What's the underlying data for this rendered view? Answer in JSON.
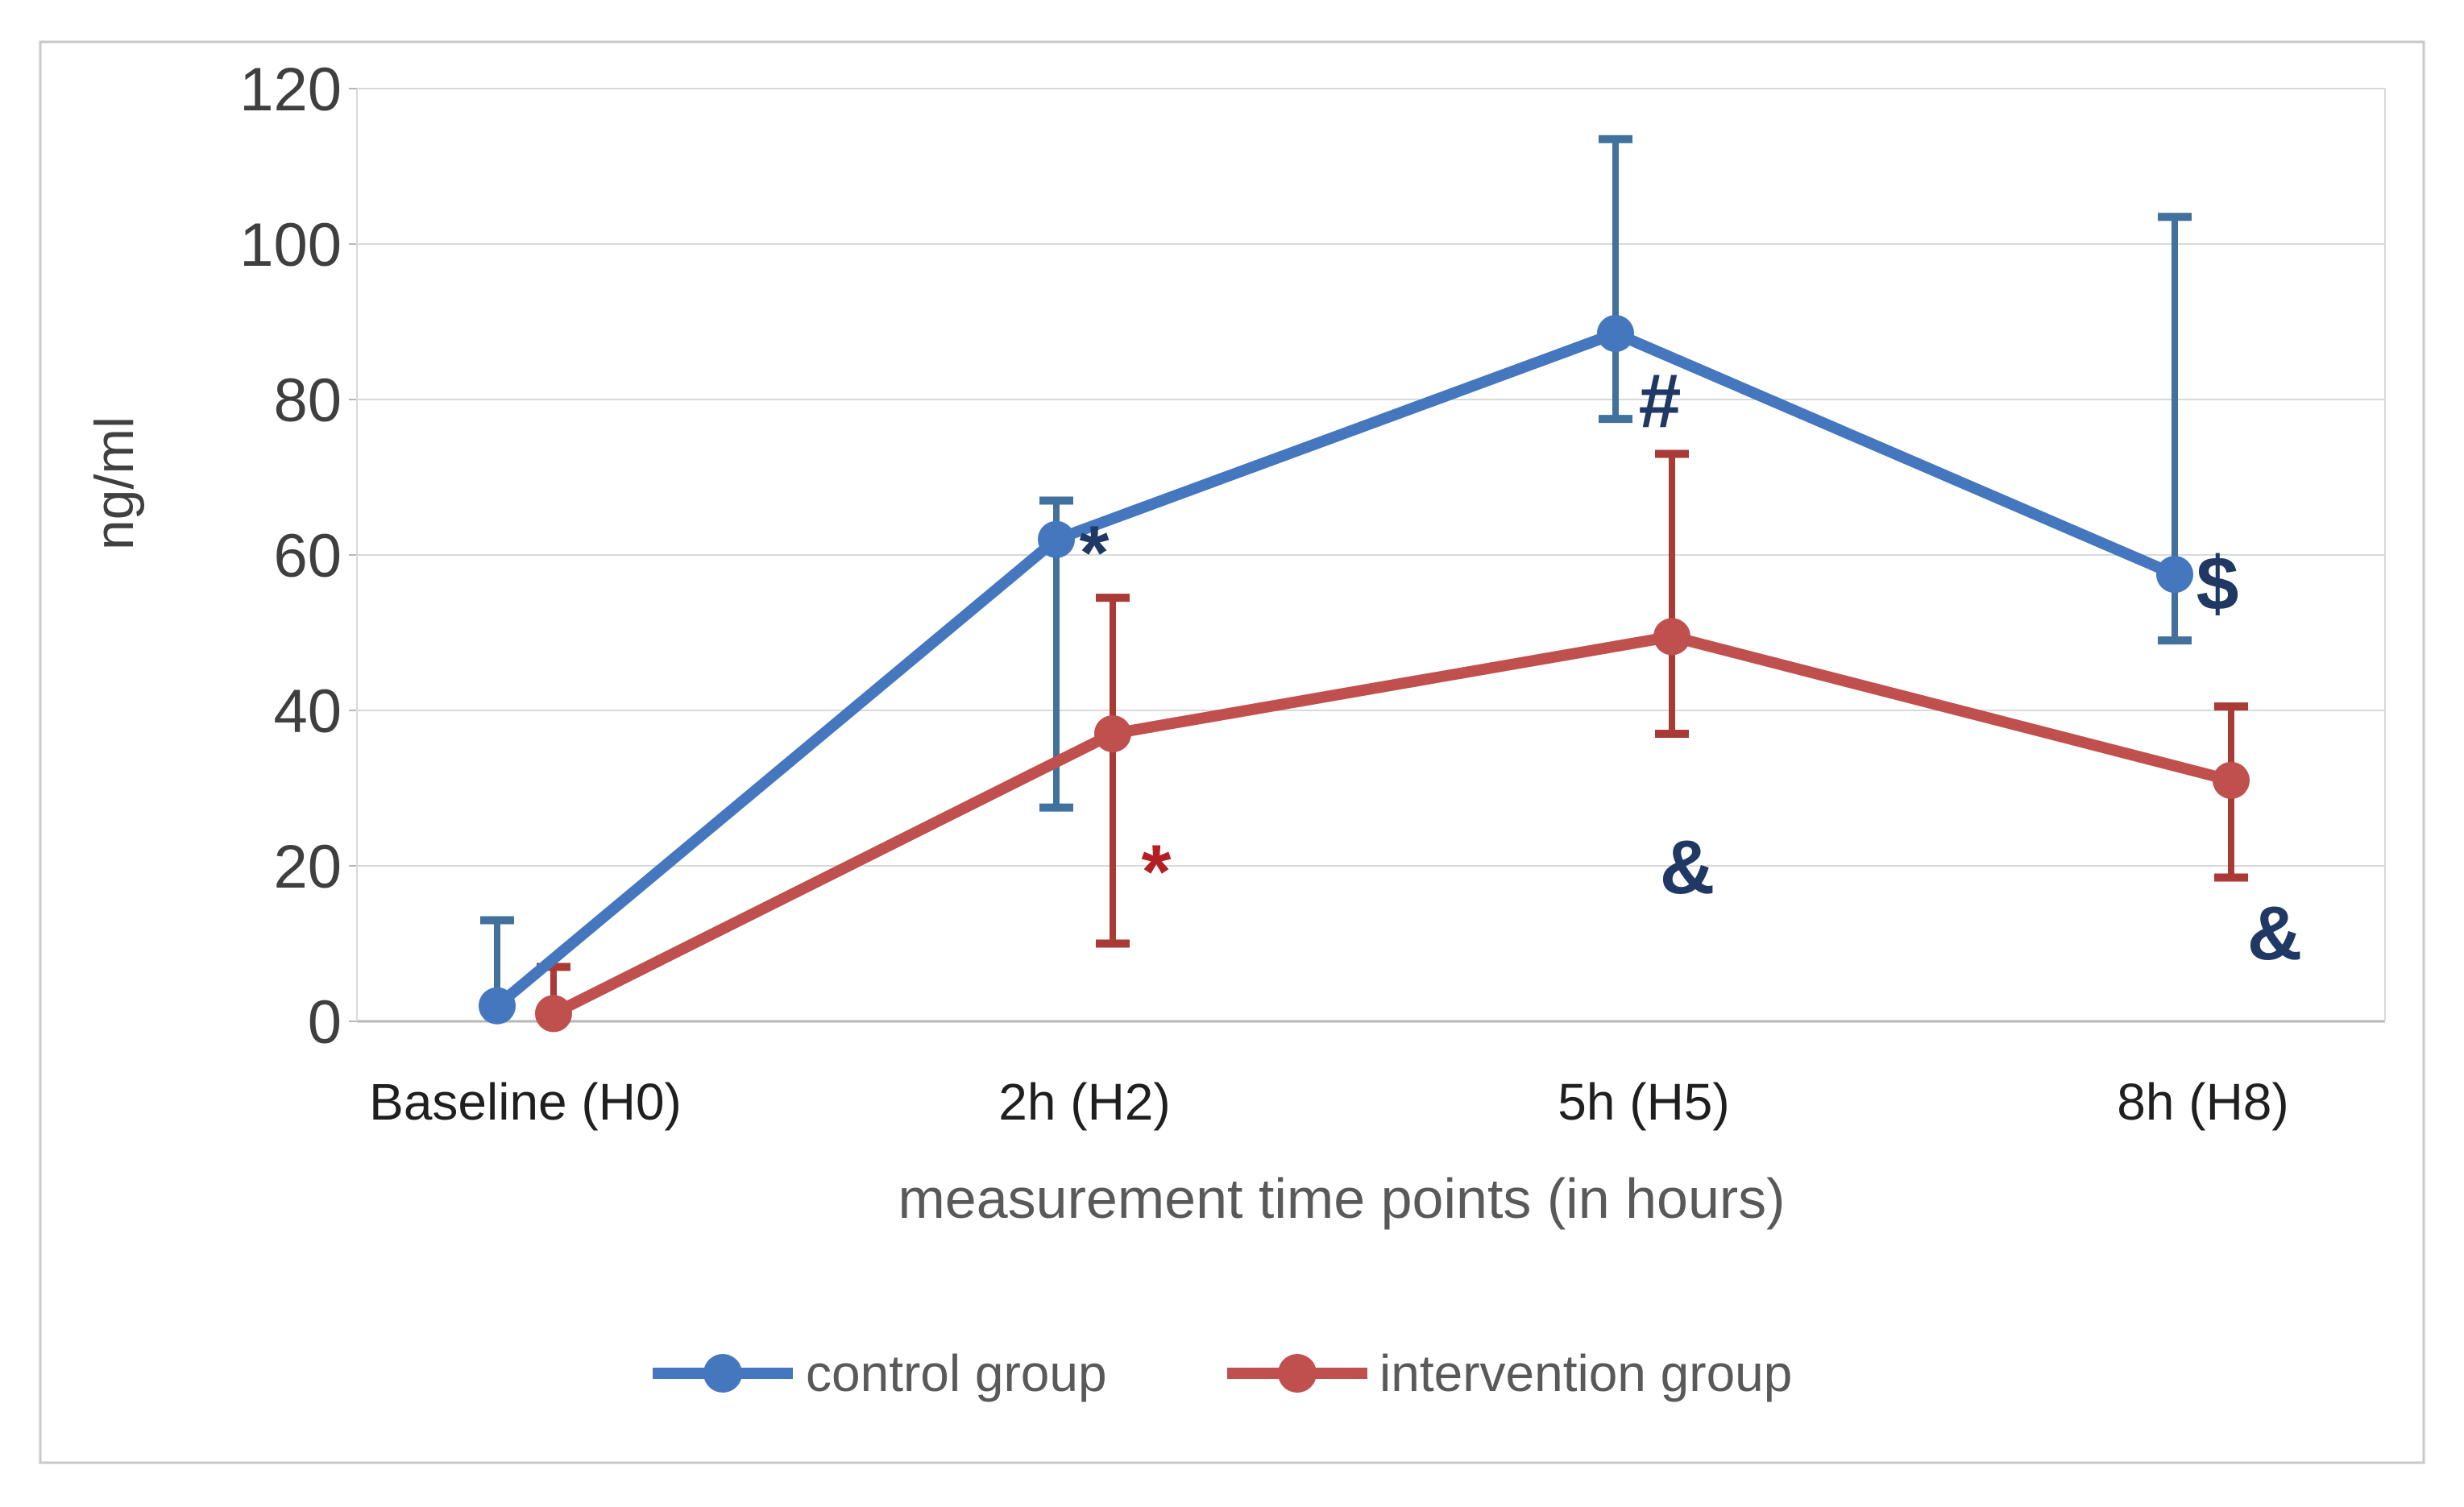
{
  "figure": {
    "y_axis_title": "ng/ml",
    "x_axis_title": "measurement time points (in hours)"
  },
  "chart_data": {
    "type": "line",
    "categories": [
      "Baseline (H0)",
      "2h (H2)",
      "5h (H5)",
      "8h (H8)"
    ],
    "xlabel": "measurement time points (in hours)",
    "ylabel": "ng/ml",
    "ylim": [
      0,
      120
    ],
    "y_tick_step": 20,
    "y_ticks": [
      0,
      20,
      40,
      60,
      80,
      100,
      120
    ],
    "y_tick_labels": [
      "0",
      "20",
      "40",
      "60",
      "80",
      "100",
      "120"
    ],
    "grid": true,
    "legend_position": "bottom",
    "series": [
      {
        "name": "control group",
        "color": "#4577BE",
        "error_color": "#41719C",
        "values": [
          2,
          62,
          88.5,
          57.5
        ],
        "error_top": [
          13,
          67,
          113.5,
          103.5
        ],
        "error_bottom": [
          null,
          27.5,
          77.5,
          49
        ]
      },
      {
        "name": "intervention group",
        "color": "#C0504D",
        "error_color": "#A93A35",
        "values": [
          1,
          37,
          49.5,
          31
        ],
        "error_top": [
          7,
          54.5,
          73,
          40.5
        ],
        "error_bottom": [
          null,
          10,
          37,
          18.5
        ]
      }
    ],
    "annotations": [
      {
        "text": "*",
        "color": "#1F3864",
        "category_index": 1,
        "value": 62,
        "dx": 12
      },
      {
        "text": "*",
        "color": "#B21F24",
        "category_index": 1,
        "value": 21,
        "dx": 89
      },
      {
        "text": "#",
        "color": "#1F3864",
        "category_index": 2,
        "value": 80,
        "dx": 20
      },
      {
        "text": "&",
        "color": "#1F3864",
        "category_index": 2,
        "value": 20,
        "dx": 54
      },
      {
        "text": "$",
        "color": "#1F3864",
        "category_index": 3,
        "value": 56.5,
        "dx": 18
      },
      {
        "text": "&",
        "color": "#1F3864",
        "category_index": 3,
        "value": 11.5,
        "dx": 89
      }
    ],
    "style_colors": {
      "gridline": "#D9D9D9",
      "axis_line": "#B7B7B7",
      "frame_border": "#C9C9C9",
      "tick_text": "#3F3F3F",
      "category_text": "#1F1F1F",
      "axis_title_text": "#595959",
      "y_title_text": "#404040",
      "legend_text": "#595959"
    }
  }
}
